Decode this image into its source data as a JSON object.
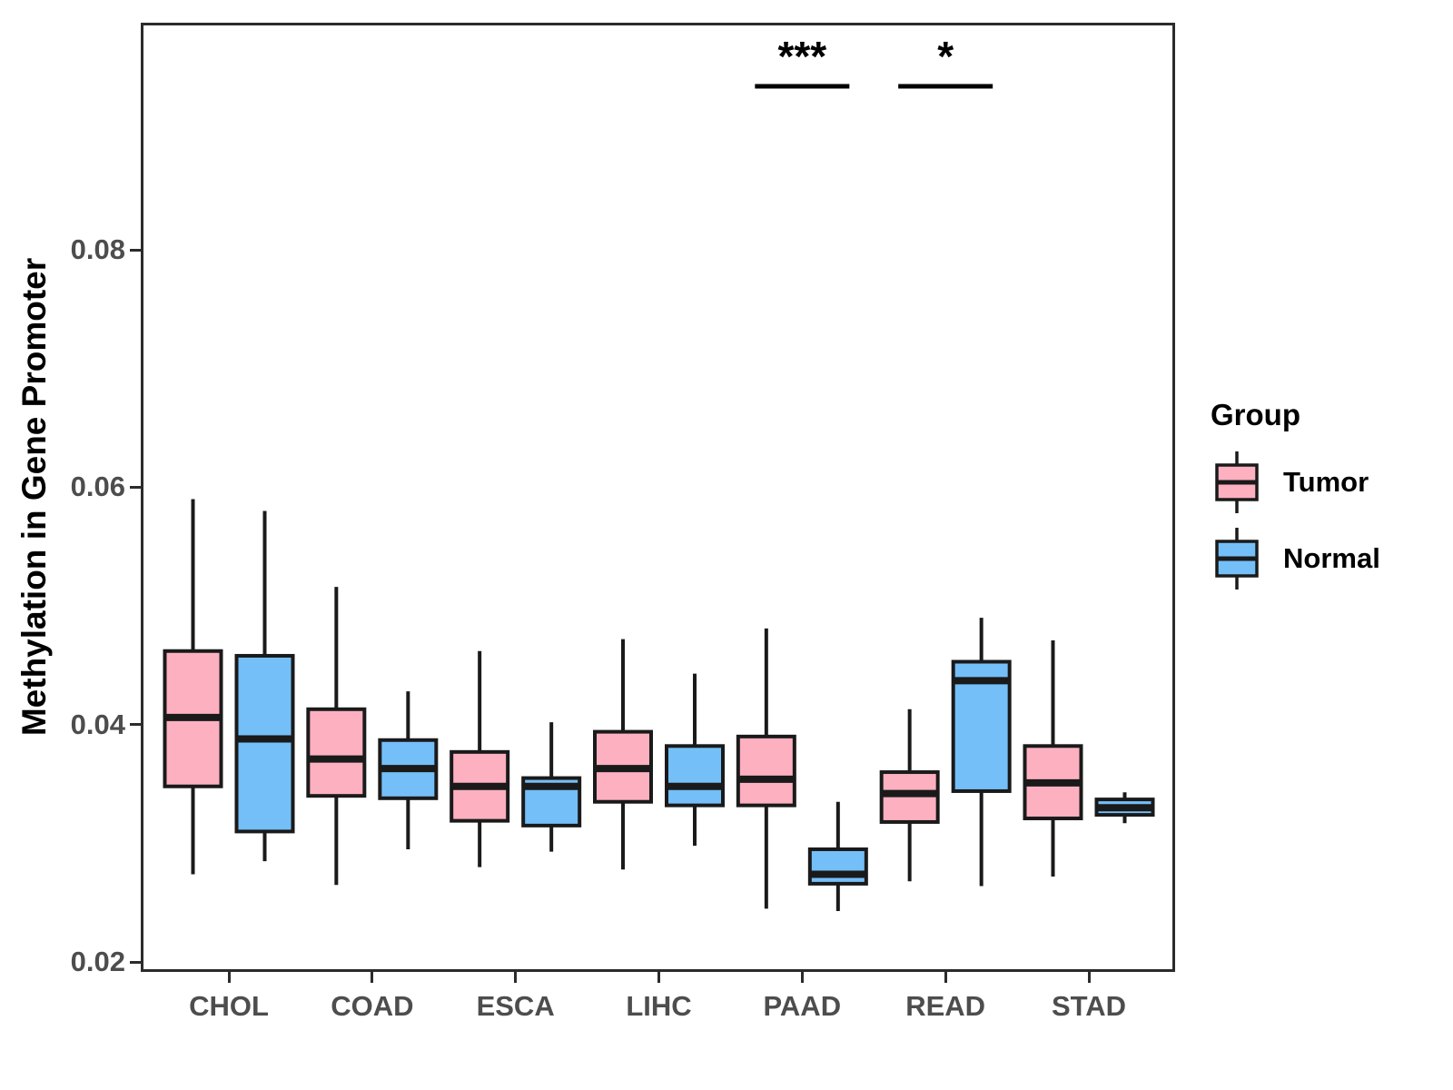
{
  "chart_data": {
    "type": "boxplot",
    "title": "",
    "xlabel": "",
    "ylabel": "Methylation in Gene Promoter",
    "categories": [
      "CHOL",
      "COAD",
      "ESCA",
      "LIHC",
      "PAAD",
      "READ",
      "STAD"
    ],
    "y_axis": {
      "ticks": [
        0.02,
        0.04,
        0.06,
        0.08
      ],
      "tick_labels": [
        "0.02",
        "0.04",
        "0.06",
        "0.08"
      ],
      "range": [
        0.0194,
        0.0989
      ]
    },
    "grid": "off",
    "groups": [
      {
        "name": "Tumor",
        "fill": "#FDB0C0"
      },
      {
        "name": "Normal",
        "fill": "#74BFF8"
      }
    ],
    "series": [
      {
        "group": "Tumor",
        "boxes": [
          {
            "category": "CHOL",
            "whisker_low": 0.0274,
            "q1": 0.0348,
            "median": 0.0406,
            "q3": 0.0462,
            "whisker_high": 0.059
          },
          {
            "category": "COAD",
            "whisker_low": 0.0265,
            "q1": 0.034,
            "median": 0.0371,
            "q3": 0.0413,
            "whisker_high": 0.0516
          },
          {
            "category": "ESCA",
            "whisker_low": 0.028,
            "q1": 0.0319,
            "median": 0.0348,
            "q3": 0.0377,
            "whisker_high": 0.0462
          },
          {
            "category": "LIHC",
            "whisker_low": 0.0278,
            "q1": 0.0335,
            "median": 0.0363,
            "q3": 0.0394,
            "whisker_high": 0.0472
          },
          {
            "category": "PAAD",
            "whisker_low": 0.0245,
            "q1": 0.0332,
            "median": 0.0354,
            "q3": 0.039,
            "whisker_high": 0.0481
          },
          {
            "category": "READ",
            "whisker_low": 0.0268,
            "q1": 0.0318,
            "median": 0.0342,
            "q3": 0.036,
            "whisker_high": 0.0413
          },
          {
            "category": "STAD",
            "whisker_low": 0.0272,
            "q1": 0.0321,
            "median": 0.0351,
            "q3": 0.0382,
            "whisker_high": 0.0471
          }
        ]
      },
      {
        "group": "Normal",
        "boxes": [
          {
            "category": "CHOL",
            "whisker_low": 0.0285,
            "q1": 0.031,
            "median": 0.0388,
            "q3": 0.0458,
            "whisker_high": 0.058
          },
          {
            "category": "COAD",
            "whisker_low": 0.0295,
            "q1": 0.0338,
            "median": 0.0363,
            "q3": 0.0387,
            "whisker_high": 0.0428
          },
          {
            "category": "ESCA",
            "whisker_low": 0.0293,
            "q1": 0.0315,
            "median": 0.0348,
            "q3": 0.0355,
            "whisker_high": 0.0402
          },
          {
            "category": "LIHC",
            "whisker_low": 0.0298,
            "q1": 0.0332,
            "median": 0.0348,
            "q3": 0.0382,
            "whisker_high": 0.0443
          },
          {
            "category": "PAAD",
            "whisker_low": 0.0243,
            "q1": 0.0266,
            "median": 0.0274,
            "q3": 0.0295,
            "whisker_high": 0.0335
          },
          {
            "category": "READ",
            "whisker_low": 0.0264,
            "q1": 0.0344,
            "median": 0.0437,
            "q3": 0.0453,
            "whisker_high": 0.049
          },
          {
            "category": "STAD",
            "whisker_low": 0.0317,
            "q1": 0.0324,
            "median": 0.033,
            "q3": 0.0337,
            "whisker_high": 0.0343
          }
        ]
      }
    ],
    "annotations": [
      {
        "label": "***",
        "category": "PAAD"
      },
      {
        "label": "*",
        "category": "READ"
      }
    ],
    "legend": {
      "title": "Group",
      "position": "right"
    },
    "style": {
      "box_border_color": "#1a1a1a",
      "tick_text_color": "#4d4d4d",
      "panel_border_color": "#2b2b2b"
    }
  }
}
